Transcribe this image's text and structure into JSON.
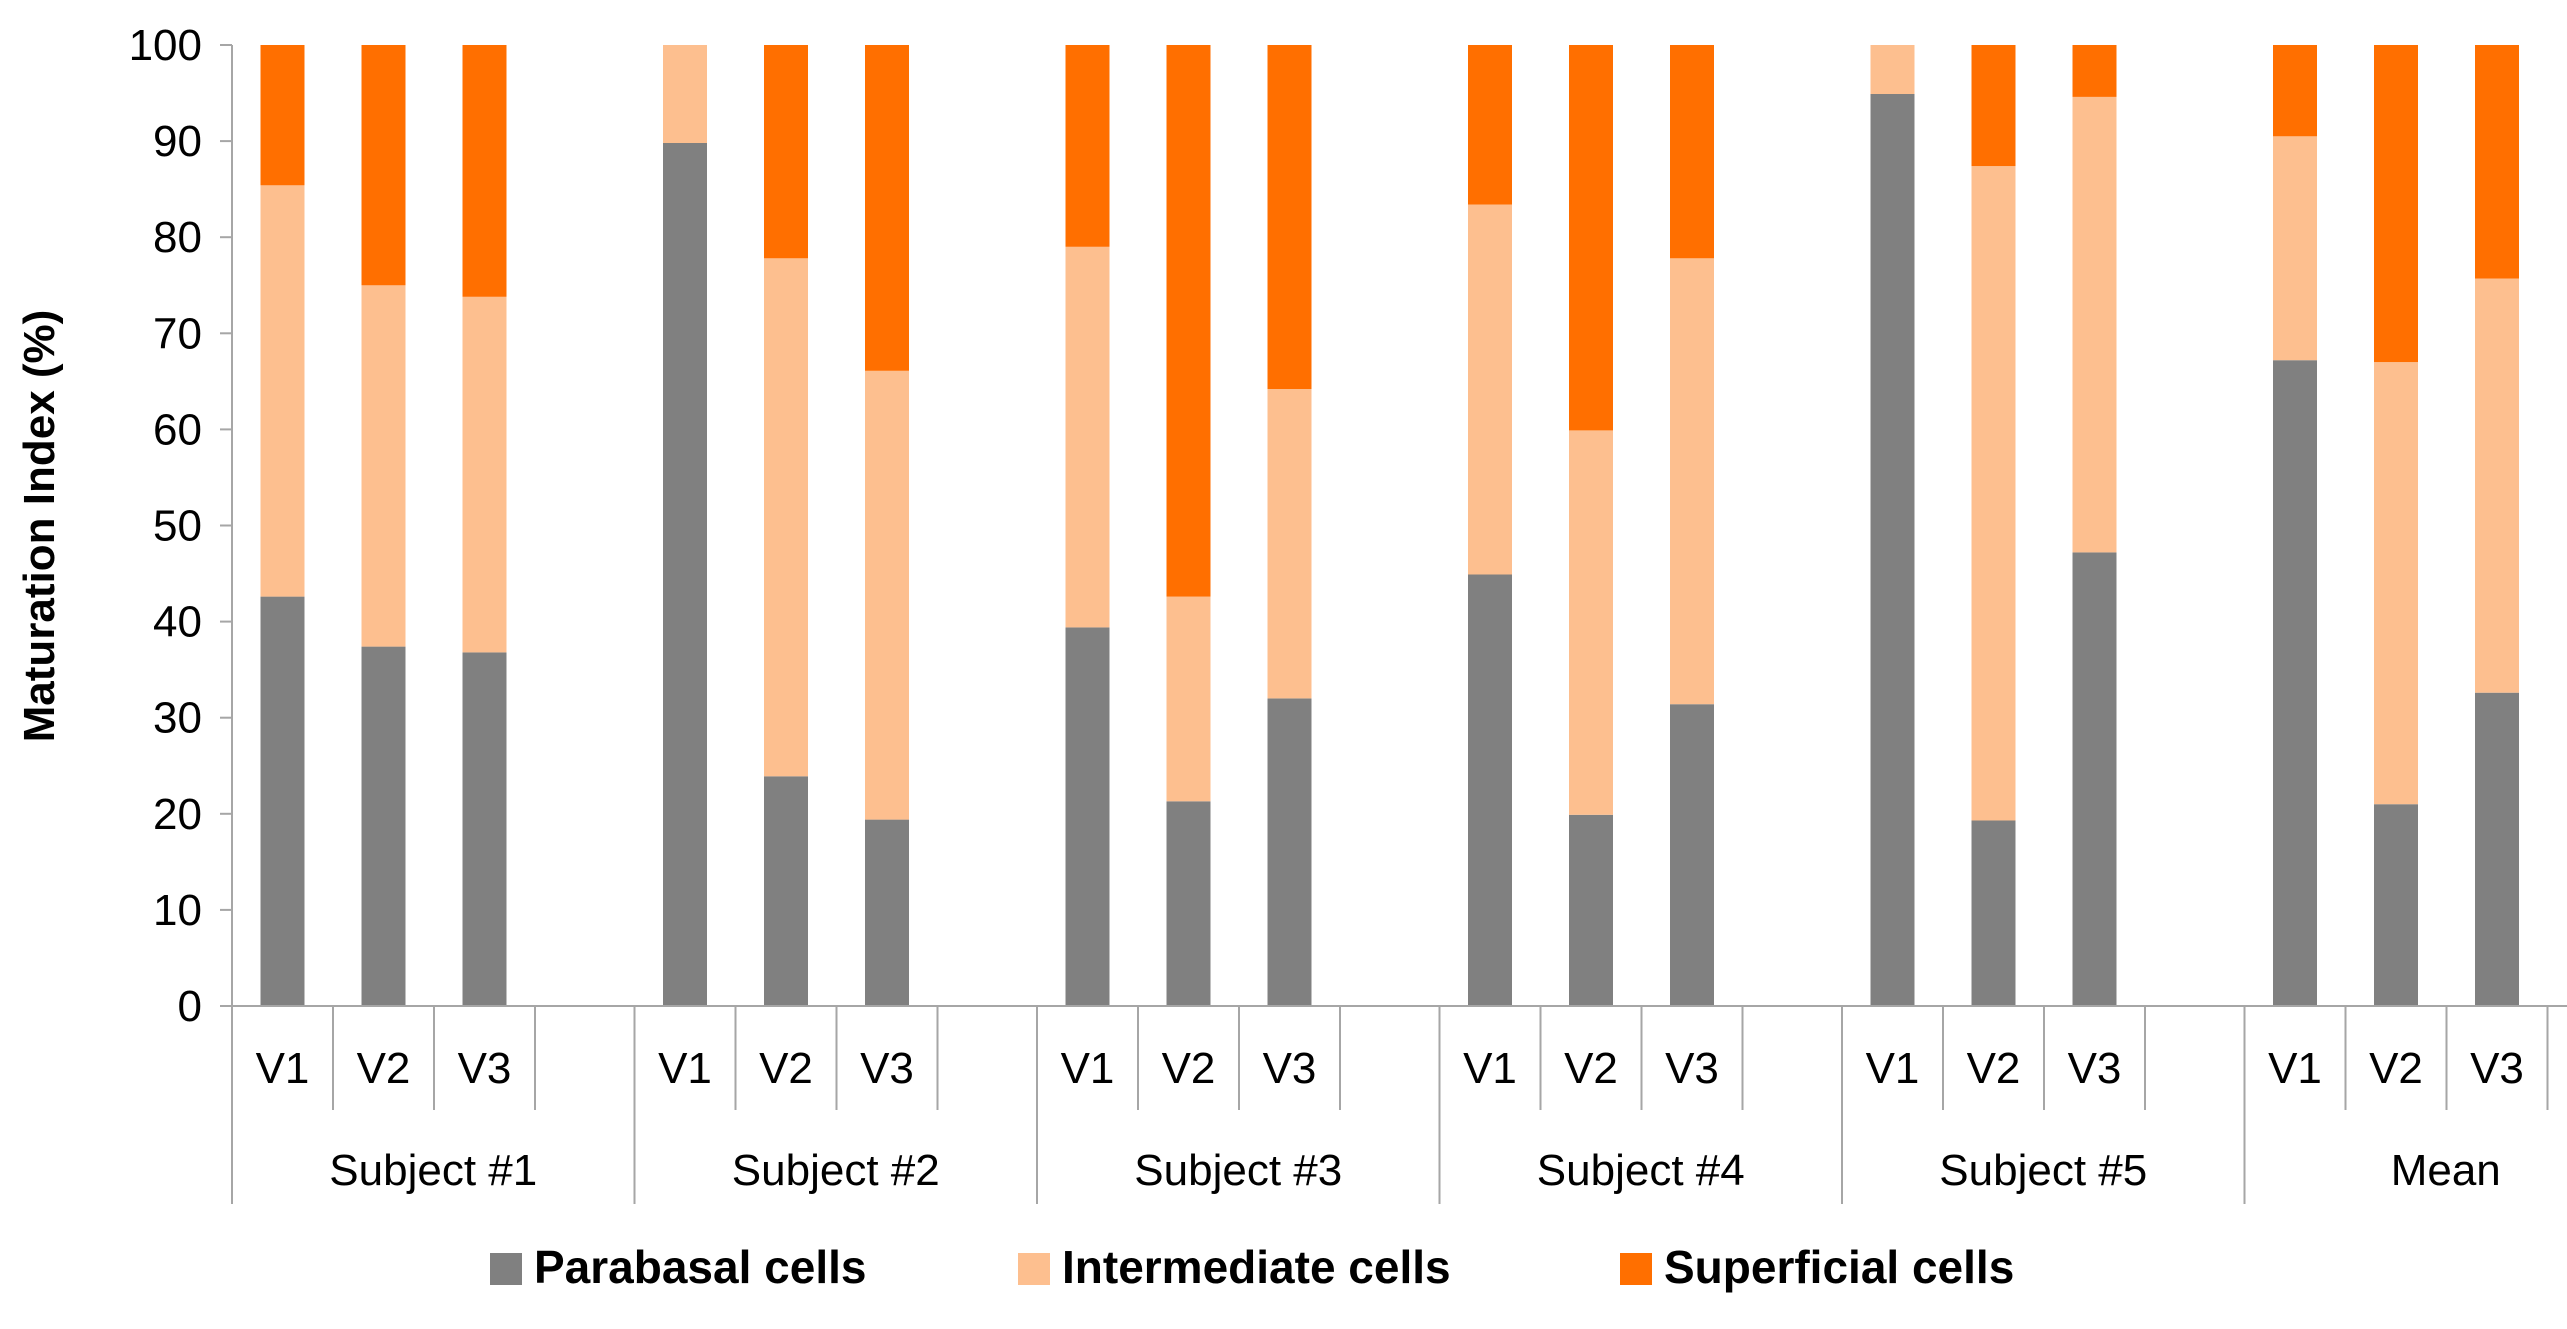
{
  "chart_data": {
    "type": "bar",
    "stacked": true,
    "title": "",
    "xlabel": "",
    "ylabel": "Maturation Index (%)",
    "ylim": [
      0,
      100
    ],
    "yticks": [
      0,
      10,
      20,
      30,
      40,
      50,
      60,
      70,
      80,
      90,
      100
    ],
    "grid": false,
    "legend_position": "bottom",
    "groups": [
      {
        "label": "Subject #1",
        "categories": [
          "V1",
          "V2",
          "V3"
        ]
      },
      {
        "label": "Subject #2",
        "categories": [
          "V1",
          "V2",
          "V3"
        ]
      },
      {
        "label": "Subject #3",
        "categories": [
          "V1",
          "V2",
          "V3"
        ]
      },
      {
        "label": "Subject #4",
        "categories": [
          "V1",
          "V2",
          "V3"
        ]
      },
      {
        "label": "Subject #5",
        "categories": [
          "V1",
          "V2",
          "V3"
        ]
      },
      {
        "label": "Mean",
        "categories": [
          "V1",
          "V2",
          "V3"
        ]
      }
    ],
    "series": [
      {
        "name": "Parabasal cells",
        "color": "#808080",
        "values": [
          42.6,
          37.4,
          36.8,
          89.8,
          23.9,
          19.4,
          39.4,
          21.3,
          32.0,
          44.9,
          19.9,
          31.4,
          94.9,
          19.3,
          47.2,
          67.2,
          21.0,
          32.6
        ]
      },
      {
        "name": "Intermediate cells",
        "color": "#FDBF8F",
        "values": [
          42.8,
          37.6,
          37.0,
          10.2,
          53.9,
          46.7,
          39.6,
          21.3,
          32.2,
          38.5,
          40.0,
          46.4,
          5.1,
          68.1,
          47.4,
          23.3,
          46.0,
          43.1
        ]
      },
      {
        "name": "Superficial cells",
        "color": "#FF6F00",
        "values": [
          14.6,
          25.0,
          26.2,
          0.0,
          22.2,
          33.9,
          21.0,
          57.4,
          35.8,
          16.6,
          40.1,
          22.2,
          0.0,
          12.6,
          5.4,
          9.5,
          33.0,
          24.3
        ]
      }
    ]
  }
}
